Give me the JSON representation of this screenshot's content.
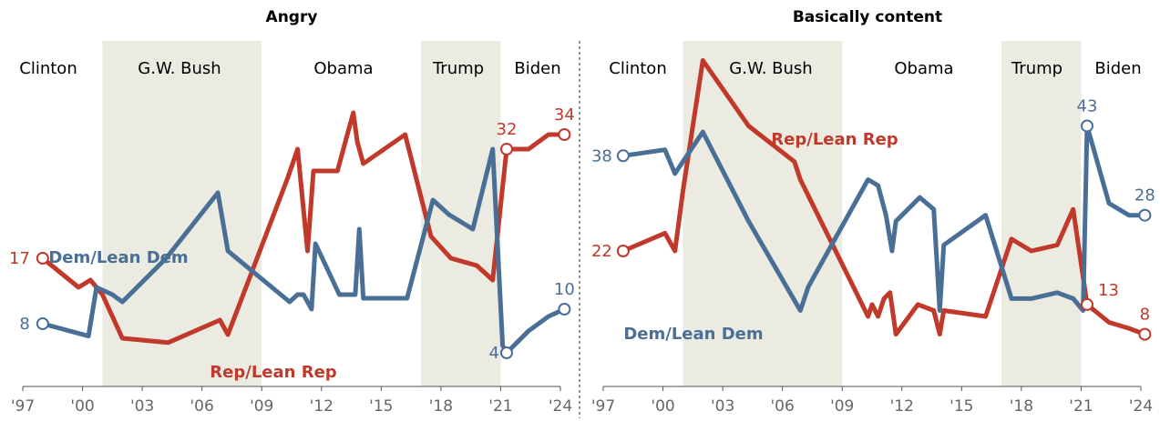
{
  "chart_data": [
    {
      "type": "line",
      "title": "Angry",
      "presidents": [
        "Clinton",
        "G.W. Bush",
        "Obama",
        "Trump",
        "Biden"
      ],
      "shaded_terms": [
        [
          2001.0,
          2009.0
        ],
        [
          2017.0,
          2021.0
        ]
      ],
      "x_tick_labels": [
        "'97",
        "'00",
        "'03",
        "'06",
        "'09",
        "'12",
        "'15",
        "'18",
        "'21",
        "'24"
      ],
      "xlim": [
        1997,
        2024
      ],
      "ylim": [
        0,
        45
      ],
      "series": [
        {
          "name": "Rep/Lean Rep",
          "color": "#c0392b",
          "x": [
            1998.0,
            1999.8,
            2000.4,
            2001.0,
            2002.0,
            2004.3,
            2006.9,
            2007.3,
            2010.3,
            2010.8,
            2011.3,
            2011.6,
            2012.8,
            2013.6,
            2013.8,
            2014.1,
            2016.2,
            2017.5,
            2018.5,
            2019.8,
            2020.6,
            2021.3,
            2022.4,
            2023.4,
            2024.2
          ],
          "y": [
            17,
            13,
            14,
            12,
            6,
            5.4,
            8.5,
            6.5,
            28,
            32,
            18,
            29,
            29,
            37,
            33,
            30,
            34,
            20,
            17,
            16,
            14,
            32,
            32,
            34,
            34
          ],
          "label": "Rep/Lean Rep",
          "endpoints": {
            "first": "17",
            "last": "34",
            "marked": "32"
          }
        },
        {
          "name": "Dem/Lean Dem",
          "color": "#4a6f96",
          "x": [
            1998.0,
            2000.3,
            2000.7,
            2001.5,
            2002.0,
            2004.2,
            2006.8,
            2007.3,
            2010.4,
            2010.8,
            2011.1,
            2011.5,
            2011.7,
            2012.9,
            2013.7,
            2013.9,
            2014.1,
            2016.3,
            2017.6,
            2018.4,
            2019.6,
            2020.6,
            2021.1,
            2021.3,
            2022.4,
            2023.4,
            2024.2
          ],
          "y": [
            8,
            6.3,
            13,
            12,
            11,
            17,
            26,
            18,
            11,
            12,
            12,
            10,
            19,
            12,
            12,
            21,
            11.5,
            11.5,
            25,
            23,
            21,
            32,
            5,
            4,
            7,
            9,
            10
          ],
          "label": "Dem/Lean Dem",
          "endpoints": {
            "first": "8",
            "last": "10",
            "marked": "4"
          }
        }
      ]
    },
    {
      "type": "line",
      "title": "Basically content",
      "presidents": [
        "Clinton",
        "G.W. Bush",
        "Obama",
        "Trump",
        "Biden"
      ],
      "shaded_terms": [
        [
          2001.0,
          2009.0
        ],
        [
          2017.0,
          2021.0
        ]
      ],
      "x_tick_labels": [
        "'97",
        "'00",
        "'03",
        "'06",
        "'09",
        "'12",
        "'15",
        "'18",
        "'21",
        "'24"
      ],
      "xlim": [
        1997,
        2024
      ],
      "ylim": [
        0,
        55
      ],
      "series": [
        {
          "name": "Rep/Lean Rep",
          "color": "#c0392b",
          "x": [
            1998.0,
            2000.1,
            2000.6,
            2001.0,
            2002.0,
            2004.3,
            2006.6,
            2006.9,
            2010.3,
            2010.5,
            2010.8,
            2011.1,
            2011.4,
            2011.7,
            2012.8,
            2013.6,
            2013.9,
            2014.1,
            2016.2,
            2017.5,
            2018.5,
            2019.8,
            2020.6,
            2021.3,
            2022.4,
            2023.4,
            2024.2
          ],
          "y": [
            22,
            25,
            22,
            32,
            54,
            43,
            37,
            34,
            11,
            13,
            11,
            14,
            15,
            8,
            13,
            12,
            8,
            12,
            11,
            24,
            22,
            23,
            29,
            13,
            10,
            9,
            8
          ],
          "label": "Rep/Lean Rep",
          "endpoints": {
            "first": "22",
            "last": "8",
            "marked": "13"
          }
        },
        {
          "name": "Dem/Lean Dem",
          "color": "#4a6f96",
          "x": [
            1998.0,
            2000.1,
            2000.6,
            2002.0,
            2004.3,
            2006.9,
            2007.3,
            2010.3,
            2010.8,
            2011.2,
            2011.5,
            2011.7,
            2012.9,
            2013.6,
            2013.9,
            2014.1,
            2016.2,
            2017.5,
            2018.5,
            2019.8,
            2020.6,
            2021.1,
            2021.3,
            2022.4,
            2023.4,
            2024.2
          ],
          "y": [
            38,
            39,
            35,
            42,
            27,
            12,
            16,
            34,
            33,
            28,
            22,
            27,
            31,
            29,
            12,
            23,
            28,
            14,
            14,
            15,
            14,
            12,
            43,
            30,
            28,
            28
          ],
          "label": "Dem/Lean Dem",
          "endpoints": {
            "first": "38",
            "last": "28",
            "marked": "43"
          }
        }
      ]
    }
  ]
}
